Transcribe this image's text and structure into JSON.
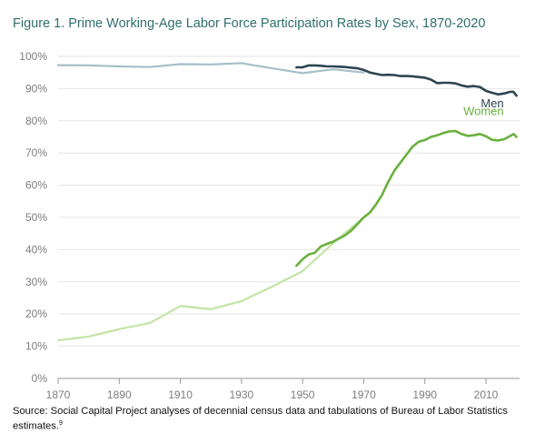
{
  "chart_data": {
    "type": "line",
    "title": "Figure 1. Prime Working-Age Labor Force Participation Rates by Sex, 1870-2020",
    "xlabel": "",
    "ylabel": "",
    "xlim": [
      1870,
      2021
    ],
    "ylim": [
      0,
      100
    ],
    "x_ticks": [
      1870,
      1890,
      1910,
      1930,
      1950,
      1970,
      1990,
      2010
    ],
    "y_ticks": [
      0,
      10,
      20,
      30,
      40,
      50,
      60,
      70,
      80,
      90,
      100
    ],
    "y_tick_labels": [
      "0%",
      "10%",
      "20%",
      "30%",
      "40%",
      "50%",
      "60%",
      "70%",
      "80%",
      "90%",
      "100%"
    ],
    "grid": "horizontal",
    "series": [
      {
        "name": "",
        "color": "#a6c0c6",
        "x": [
          1870,
          1880,
          1890,
          1900,
          1910,
          1920,
          1930,
          1940,
          1950,
          1960,
          1970
        ],
        "y": [
          97.3,
          97.2,
          96.9,
          96.7,
          97.6,
          97.5,
          97.9,
          96.3,
          94.8,
          96.0,
          95.0
        ]
      },
      {
        "name": "Men",
        "color": "#2d4550",
        "x": [
          1948,
          1950,
          1952,
          1954,
          1956,
          1958,
          1960,
          1962,
          1964,
          1966,
          1968,
          1970,
          1972,
          1974,
          1976,
          1978,
          1980,
          1982,
          1984,
          1986,
          1988,
          1990,
          1992,
          1994,
          1996,
          1998,
          2000,
          2002,
          2004,
          2006,
          2008,
          2010,
          2012,
          2014,
          2016,
          2018,
          2019,
          2020
        ],
        "y": [
          96.6,
          96.6,
          97.2,
          97.2,
          97.1,
          96.9,
          96.9,
          96.8,
          96.7,
          96.5,
          96.3,
          95.8,
          95.0,
          94.6,
          94.2,
          94.3,
          94.2,
          93.9,
          93.9,
          93.8,
          93.6,
          93.4,
          92.8,
          91.7,
          91.8,
          91.8,
          91.6,
          91.0,
          90.6,
          90.8,
          90.5,
          89.3,
          88.7,
          88.2,
          88.5,
          89.0,
          89.0,
          87.8
        ]
      },
      {
        "name": "",
        "color": "#c3e4a6",
        "x": [
          1870,
          1880,
          1890,
          1900,
          1910,
          1920,
          1930,
          1940,
          1950,
          1960,
          1970
        ],
        "y": [
          11.8,
          13.0,
          15.3,
          17.2,
          22.5,
          21.5,
          24.0,
          28.5,
          33.3,
          42.0,
          50.0
        ]
      },
      {
        "name": "Women",
        "color": "#6ab03e",
        "x": [
          1948,
          1950,
          1952,
          1954,
          1956,
          1958,
          1960,
          1962,
          1964,
          1966,
          1968,
          1970,
          1972,
          1974,
          1976,
          1978,
          1980,
          1982,
          1984,
          1986,
          1988,
          1990,
          1992,
          1994,
          1996,
          1998,
          2000,
          2002,
          2004,
          2006,
          2008,
          2010,
          2012,
          2014,
          2016,
          2018,
          2019,
          2020
        ],
        "y": [
          35.0,
          37.0,
          38.5,
          39.0,
          41.0,
          41.8,
          42.5,
          43.5,
          44.5,
          46.0,
          48.0,
          50.0,
          51.5,
          54.0,
          57.0,
          61.0,
          64.5,
          67.0,
          69.5,
          72.0,
          73.5,
          74.0,
          75.0,
          75.5,
          76.2,
          76.7,
          76.8,
          75.9,
          75.3,
          75.5,
          75.9,
          75.2,
          74.1,
          73.9,
          74.3,
          75.3,
          75.9,
          75.0
        ]
      }
    ]
  },
  "source": {
    "text": "Source: Social Capital Project analyses of decennial census data and tabulations of Bureau of Labor Statistics estimates.",
    "note_marker": "9"
  }
}
